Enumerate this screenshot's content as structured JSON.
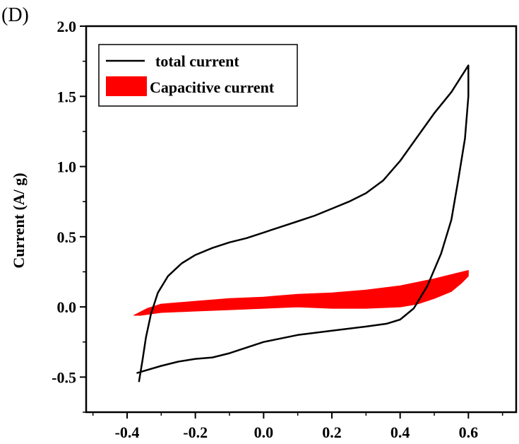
{
  "chart_data": {
    "type": "line",
    "panel_label": "(D)",
    "title": "",
    "xlabel": "",
    "ylabel": "Current (A/ g)",
    "xlim": [
      -0.52,
      0.74
    ],
    "ylim": [
      -0.75,
      2.0
    ],
    "xticks": [
      -0.4,
      -0.2,
      0.0,
      0.2,
      0.4,
      0.6
    ],
    "xtick_labels": [
      "-0.4",
      "-0.2",
      "0.0",
      "0.2",
      "0.4",
      "0.6"
    ],
    "yticks": [
      -0.5,
      0.0,
      0.5,
      1.0,
      1.5,
      2.0
    ],
    "ytick_labels": [
      "-0.5",
      "0.0",
      "0.5",
      "1.0",
      "1.5",
      "2.0"
    ],
    "grid": false,
    "legend": {
      "placement": "top-left",
      "entries": [
        {
          "label": "total current",
          "style": "line",
          "color": "#000000"
        },
        {
          "label": "Capacitive current",
          "style": "fill",
          "color": "#ff0000"
        }
      ]
    },
    "series": [
      {
        "name": "total current",
        "kind": "closed-loop",
        "color": "#000000",
        "points": [
          [
            -0.365,
            -0.53
          ],
          [
            -0.355,
            -0.38
          ],
          [
            -0.345,
            -0.22
          ],
          [
            -0.33,
            -0.05
          ],
          [
            -0.31,
            0.1
          ],
          [
            -0.28,
            0.22
          ],
          [
            -0.24,
            0.31
          ],
          [
            -0.2,
            0.37
          ],
          [
            -0.15,
            0.42
          ],
          [
            -0.1,
            0.46
          ],
          [
            -0.05,
            0.49
          ],
          [
            0.0,
            0.53
          ],
          [
            0.05,
            0.57
          ],
          [
            0.1,
            0.61
          ],
          [
            0.15,
            0.65
          ],
          [
            0.2,
            0.7
          ],
          [
            0.25,
            0.75
          ],
          [
            0.3,
            0.81
          ],
          [
            0.35,
            0.9
          ],
          [
            0.4,
            1.04
          ],
          [
            0.45,
            1.21
          ],
          [
            0.5,
            1.38
          ],
          [
            0.55,
            1.53
          ],
          [
            0.6,
            1.72
          ],
          [
            0.6,
            1.5
          ],
          [
            0.59,
            1.2
          ],
          [
            0.57,
            0.9
          ],
          [
            0.55,
            0.62
          ],
          [
            0.52,
            0.38
          ],
          [
            0.48,
            0.15
          ],
          [
            0.44,
            -0.01
          ],
          [
            0.4,
            -0.09
          ],
          [
            0.36,
            -0.12
          ],
          [
            0.3,
            -0.14
          ],
          [
            0.2,
            -0.17
          ],
          [
            0.1,
            -0.2
          ],
          [
            0.0,
            -0.25
          ],
          [
            -0.1,
            -0.33
          ],
          [
            -0.15,
            -0.36
          ],
          [
            -0.2,
            -0.37
          ],
          [
            -0.25,
            -0.39
          ],
          [
            -0.3,
            -0.42
          ],
          [
            -0.37,
            -0.47
          ]
        ]
      },
      {
        "name": "Capacitive current",
        "kind": "filled-band",
        "color": "#ff0000",
        "upper": [
          [
            -0.38,
            -0.06
          ],
          [
            -0.34,
            -0.01
          ],
          [
            -0.3,
            0.02
          ],
          [
            -0.2,
            0.04
          ],
          [
            -0.1,
            0.06
          ],
          [
            0.0,
            0.07
          ],
          [
            0.1,
            0.09
          ],
          [
            0.2,
            0.1
          ],
          [
            0.3,
            0.12
          ],
          [
            0.4,
            0.15
          ],
          [
            0.5,
            0.2
          ],
          [
            0.55,
            0.23
          ],
          [
            0.6,
            0.26
          ]
        ],
        "lower": [
          [
            0.6,
            0.22
          ],
          [
            0.58,
            0.17
          ],
          [
            0.55,
            0.11
          ],
          [
            0.5,
            0.06
          ],
          [
            0.45,
            0.02
          ],
          [
            0.4,
            0.0
          ],
          [
            0.3,
            -0.01
          ],
          [
            0.2,
            -0.01
          ],
          [
            0.1,
            0.0
          ],
          [
            0.0,
            -0.01
          ],
          [
            -0.1,
            -0.02
          ],
          [
            -0.2,
            -0.03
          ],
          [
            -0.3,
            -0.04
          ],
          [
            -0.36,
            -0.06
          ],
          [
            -0.38,
            -0.06
          ]
        ]
      }
    ]
  }
}
